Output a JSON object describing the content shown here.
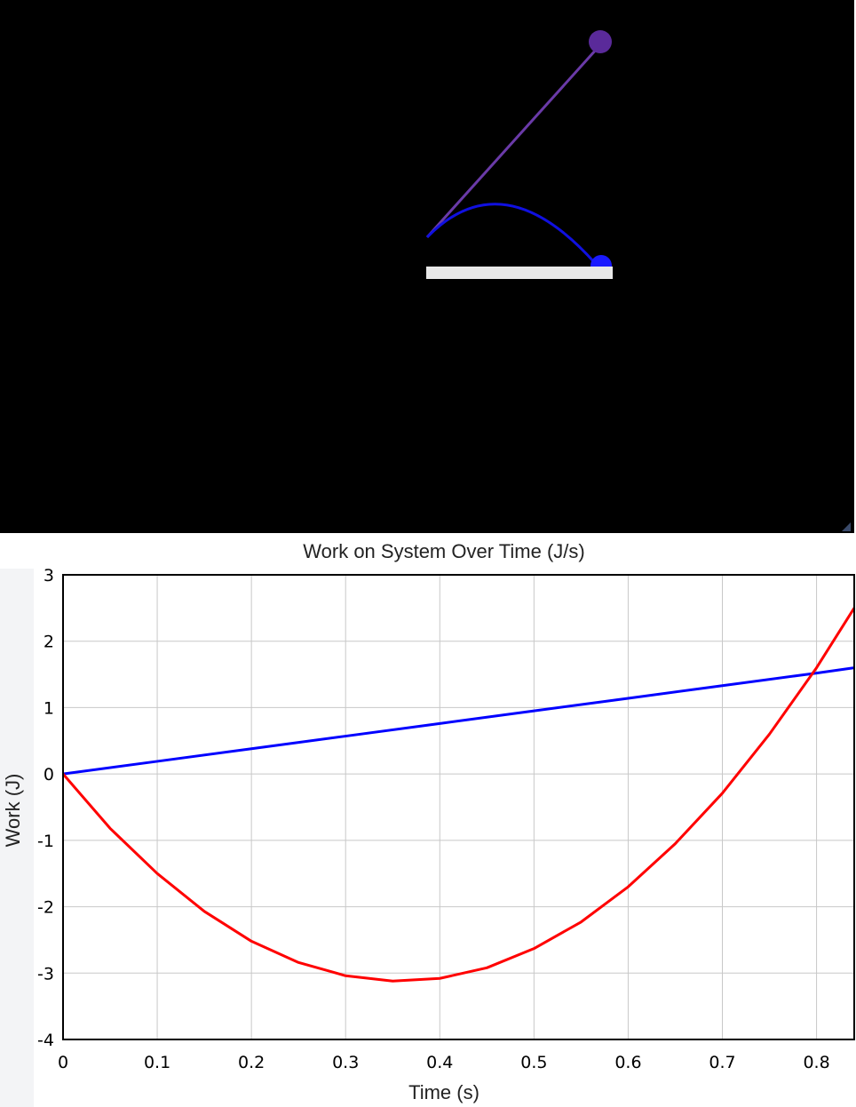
{
  "scene": {
    "background": "#000000",
    "platform_color": "#e8e8e8",
    "ball_color": "#5a2a9a",
    "trail_color": "#6a3aa8",
    "arc_color": "#1010e0"
  },
  "chart_data": {
    "type": "line",
    "title": "Work on System Over Time (J/s)",
    "xlabel": "Time (s)",
    "ylabel": "Work (J)",
    "xlim": [
      0,
      0.84
    ],
    "ylim": [
      -4,
      3
    ],
    "xticks": [
      0,
      0.1,
      0.2,
      0.3,
      0.4,
      0.5,
      0.6,
      0.7,
      0.8
    ],
    "xtick_labels": [
      "0",
      "0.1",
      "0.2",
      "0.3",
      "0.4",
      "0.5",
      "0.6",
      "0.7",
      "0.8"
    ],
    "yticks": [
      -4,
      -3,
      -2,
      -1,
      0,
      1,
      2,
      3
    ],
    "ytick_labels": [
      "-4",
      "-3",
      "-2",
      "-1",
      "0",
      "1",
      "2",
      "3"
    ],
    "grid": true,
    "series": [
      {
        "color": "#0000ff",
        "x": [
          0,
          0.1,
          0.2,
          0.3,
          0.4,
          0.5,
          0.6,
          0.7,
          0.8,
          0.84
        ],
        "y": [
          0,
          0.19,
          0.38,
          0.57,
          0.76,
          0.95,
          1.14,
          1.33,
          1.52,
          1.6
        ]
      },
      {
        "color": "#ff0000",
        "x": [
          0,
          0.05,
          0.1,
          0.15,
          0.2,
          0.25,
          0.3,
          0.35,
          0.4,
          0.45,
          0.5,
          0.55,
          0.6,
          0.65,
          0.7,
          0.75,
          0.8,
          0.84
        ],
        "y": [
          0,
          -0.82,
          -1.5,
          -2.07,
          -2.52,
          -2.84,
          -3.04,
          -3.12,
          -3.08,
          -2.92,
          -2.63,
          -2.23,
          -1.7,
          -1.05,
          -0.29,
          0.6,
          1.6,
          2.5
        ]
      }
    ]
  }
}
